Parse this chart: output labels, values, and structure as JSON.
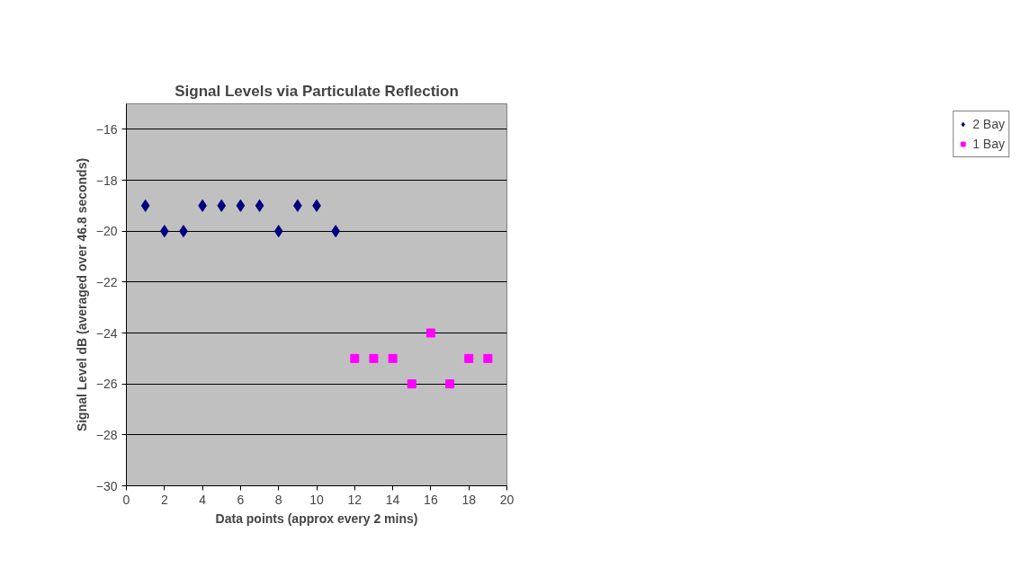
{
  "chart_data": {
    "type": "scatter",
    "title": "Signal Levels via Particulate Reflection",
    "xlabel": "Data points (approx every 2 mins)",
    "ylabel": "Signal Level dB (averaged over 46.8 seconds)",
    "series": [
      {
        "name": "2 Bay",
        "color": "#000080",
        "marker": "diamond",
        "x": [
          1,
          2,
          3,
          4,
          5,
          6,
          7,
          8,
          9,
          10,
          11
        ],
        "values": [
          -19,
          -20,
          -20,
          -19,
          -19,
          -19,
          -19,
          -20,
          -19,
          -19,
          -20
        ]
      },
      {
        "name": "1 Bay",
        "color": "#ff00ff",
        "marker": "square",
        "x": [
          12,
          13,
          14,
          15,
          16,
          17,
          18,
          19
        ],
        "values": [
          -25,
          -25,
          -25,
          -26,
          -24,
          -26,
          -25,
          -25
        ]
      }
    ],
    "xlim": [
      0,
      20
    ],
    "xticks": [
      0,
      2,
      4,
      6,
      8,
      10,
      12,
      14,
      16,
      18,
      20
    ],
    "ylim": [
      -30,
      -15
    ],
    "yticks": [
      -30,
      -28,
      -26,
      -24,
      -22,
      -20,
      -18,
      -16
    ],
    "grid": "y",
    "legend": "right"
  }
}
